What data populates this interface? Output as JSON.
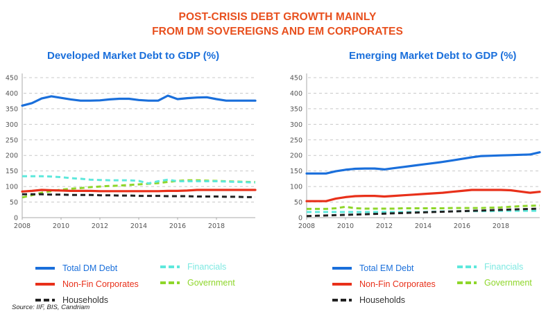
{
  "header": {
    "title_line1": "POST-CRISIS DEBT GROWTH MAINLY",
    "title_line2": "FROM DM SOVEREIGNS AND EM CORPORATES"
  },
  "source": "Source: IIF, BIS, Candriam",
  "colors": {
    "title": "#e8501e",
    "chart_title": "#1a6fdb",
    "total": "#1a6fdb",
    "nonfin": "#e8301a",
    "households": "#222222",
    "financials": "#5ee8dc",
    "government": "#8ed62a"
  },
  "chart_data": [
    {
      "type": "line",
      "title": "Developed Market Debt to GDP (%)",
      "xlabel": "",
      "ylabel": "",
      "ylim": [
        0,
        450
      ],
      "xlim": [
        2008,
        2020
      ],
      "yticks": [
        "0",
        "50",
        "100",
        "150",
        "200",
        "250",
        "300",
        "350",
        "400",
        "450"
      ],
      "xticks": [
        "2008",
        "2010",
        "2012",
        "2014",
        "2016",
        "2018"
      ],
      "grid": true,
      "legend_position": "bottom",
      "x": [
        2008,
        2008.5,
        2009,
        2009.5,
        2010,
        2010.5,
        2011,
        2011.5,
        2012,
        2012.5,
        2013,
        2013.5,
        2014,
        2014.5,
        2015,
        2015.5,
        2016,
        2016.5,
        2017,
        2017.5,
        2018,
        2018.5,
        2019,
        2019.5,
        2020
      ],
      "series": [
        {
          "name": "Total DM Debt",
          "key": "total",
          "style": "solid",
          "values": [
            360,
            368,
            383,
            390,
            385,
            380,
            376,
            376,
            377,
            380,
            382,
            382,
            378,
            376,
            376,
            392,
            381,
            384,
            386,
            387,
            381,
            376,
            376,
            376,
            376
          ]
        },
        {
          "name": "Non-Fin Corporates",
          "key": "nonfin",
          "style": "solid",
          "values": [
            84,
            86,
            89,
            88,
            87,
            86,
            86,
            86,
            85,
            85,
            85,
            85,
            85,
            85,
            85,
            86,
            86,
            87,
            89,
            89,
            89,
            89,
            89,
            89,
            89
          ]
        },
        {
          "name": "Households",
          "key": "households",
          "style": "dashed",
          "values": [
            75,
            75,
            75,
            74,
            74,
            73,
            73,
            73,
            72,
            72,
            71,
            71,
            70,
            70,
            70,
            69,
            69,
            69,
            68,
            68,
            68,
            67,
            67,
            66,
            66
          ]
        },
        {
          "name": "Financials",
          "key": "financials",
          "style": "dashed",
          "values": [
            133,
            133,
            133,
            132,
            130,
            127,
            125,
            122,
            121,
            120,
            120,
            120,
            118,
            110,
            117,
            122,
            117,
            117,
            117,
            117,
            117,
            116,
            115,
            114,
            113
          ]
        },
        {
          "name": "Government",
          "key": "government",
          "style": "dashed",
          "values": [
            65,
            72,
            80,
            85,
            90,
            93,
            95,
            98,
            100,
            102,
            103,
            105,
            107,
            109,
            111,
            115,
            118,
            120,
            120,
            119,
            118,
            117,
            116,
            115,
            114
          ]
        }
      ]
    },
    {
      "type": "line",
      "title": "Emerging Market Debt to GDP (%)",
      "xlabel": "",
      "ylabel": "",
      "ylim": [
        0,
        450
      ],
      "xlim": [
        2008,
        2020
      ],
      "yticks": [
        "0",
        "50",
        "100",
        "150",
        "200",
        "250",
        "300",
        "350",
        "400",
        "450"
      ],
      "xticks": [
        "2008",
        "2010",
        "2012",
        "2014",
        "2016",
        "2018"
      ],
      "grid": true,
      "legend_position": "bottom",
      "x": [
        2008,
        2008.5,
        2009,
        2009.5,
        2010,
        2010.5,
        2011,
        2011.5,
        2012,
        2012.5,
        2013,
        2013.5,
        2014,
        2014.5,
        2015,
        2015.5,
        2016,
        2016.5,
        2017,
        2017.5,
        2018,
        2018.5,
        2019,
        2019.5,
        2020
      ],
      "series": [
        {
          "name": "Total EM Debt",
          "key": "total",
          "style": "solid",
          "values": [
            142,
            142,
            142,
            149,
            154,
            157,
            158,
            158,
            155,
            159,
            163,
            167,
            171,
            175,
            179,
            184,
            189,
            194,
            198,
            199,
            200,
            201,
            202,
            203,
            210
          ]
        },
        {
          "name": "Non-Fin Corporates",
          "key": "nonfin",
          "style": "solid",
          "values": [
            53,
            53,
            53,
            61,
            66,
            69,
            70,
            70,
            68,
            70,
            72,
            74,
            76,
            78,
            80,
            83,
            86,
            89,
            89,
            89,
            89,
            88,
            84,
            80,
            83
          ]
        },
        {
          "name": "Households",
          "key": "households",
          "style": "dashed",
          "values": [
            5,
            6,
            7,
            8,
            9,
            10,
            11,
            12,
            13,
            14,
            15,
            16,
            17,
            18,
            19,
            20,
            21,
            22,
            23,
            24,
            25,
            26,
            27,
            28,
            29
          ]
        },
        {
          "name": "Financials",
          "key": "financials",
          "style": "dashed",
          "values": [
            18,
            18,
            18,
            18,
            18,
            18,
            18,
            18,
            18,
            18,
            18,
            18,
            18,
            19,
            20,
            20,
            21,
            21,
            21,
            21,
            22,
            22,
            22,
            22,
            22
          ]
        },
        {
          "name": "Government",
          "key": "government",
          "style": "dashed",
          "values": [
            28,
            28,
            28,
            30,
            35,
            30,
            29,
            29,
            29,
            29,
            30,
            30,
            30,
            30,
            30,
            31,
            31,
            31,
            31,
            32,
            33,
            35,
            37,
            38,
            39
          ]
        }
      ]
    }
  ]
}
